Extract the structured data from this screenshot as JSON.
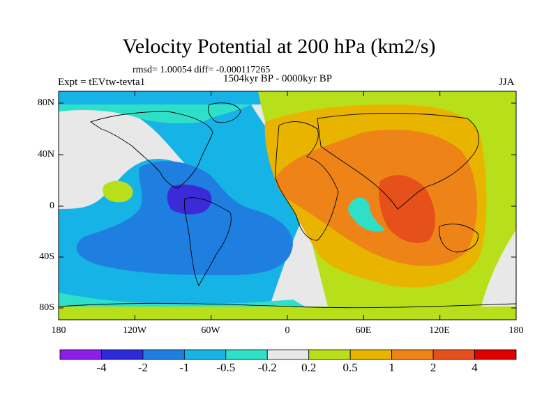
{
  "title": "Velocity Potential at 200 hPa (km2/s)",
  "stats_line": "rmsd= 1.00054 diff= -0.000117265",
  "left_label": "Expt = tEVtw-tevta1",
  "center_label": "1504kyr BP - 0000kyr BP",
  "right_label": "JJA",
  "lat_ticks": [
    "80N",
    "40N",
    "0",
    "40S",
    "80S"
  ],
  "lon_ticks": [
    "180",
    "120W",
    "60W",
    "0",
    "60E",
    "120E",
    "180"
  ],
  "colorbar": {
    "labels": [
      "-4",
      "-2",
      "-1",
      "-0.5",
      "-0.2",
      "0.2",
      "0.5",
      "1",
      "2",
      "4"
    ],
    "colors": [
      "#8c1ee6",
      "#2b2bd8",
      "#1f7fe0",
      "#16b4e6",
      "#2fe0c8",
      "#e8e8e8",
      "#b8e01a",
      "#e8b400",
      "#ee8418",
      "#e6501a",
      "#e00000"
    ]
  },
  "fill_colors": {
    "deep_neg": "#3a2ad8",
    "neg2": "#1f7fe0",
    "neg1": "#16b4e6",
    "neg05": "#2fe0c8",
    "neutral": "#e8e8e8",
    "pos02": "#b8e01a",
    "pos05": "#e8b400",
    "pos1": "#ee8418",
    "pos2": "#e6501a"
  }
}
